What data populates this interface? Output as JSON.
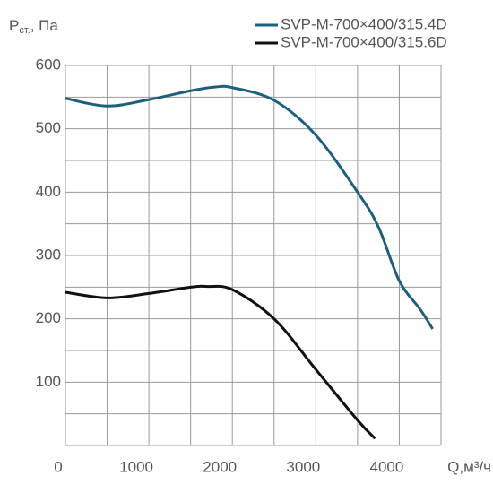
{
  "chart_data": {
    "type": "line",
    "ylabel": {
      "main": "P",
      "sub": "ст.",
      "unit": ", Па"
    },
    "xlabel": "Q,м³/ч",
    "series": [
      {
        "name": "SVP-M-700×400/315.4D",
        "color": "#1d5f7c",
        "x": [
          0,
          500,
          1000,
          1500,
          1800,
          2000,
          2500,
          3000,
          3500,
          3750,
          4000,
          4250,
          4400
        ],
        "values": [
          548,
          536,
          546,
          560,
          566,
          565,
          545,
          490,
          400,
          345,
          260,
          215,
          184
        ]
      },
      {
        "name": "SVP-M-700×400/315.6D",
        "color": "#111111",
        "x": [
          0,
          500,
          1000,
          1500,
          1700,
          2000,
          2500,
          3000,
          3500,
          3710
        ],
        "values": [
          242,
          233,
          240,
          250,
          251,
          246,
          200,
          120,
          40,
          11
        ]
      }
    ],
    "xlim": [
      0,
      4500
    ],
    "ylim": [
      0,
      600
    ],
    "xticks": [
      0,
      1000,
      2000,
      3000,
      4000
    ],
    "yticks": [
      100,
      200,
      300,
      400,
      500,
      600
    ],
    "xgrid": [
      0,
      500,
      1000,
      1500,
      2000,
      2500,
      3000,
      3500,
      4000,
      4500
    ],
    "ygrid": [
      0,
      50,
      100,
      150,
      200,
      250,
      300,
      350,
      400,
      450,
      500,
      550,
      600
    ],
    "grid": true
  }
}
